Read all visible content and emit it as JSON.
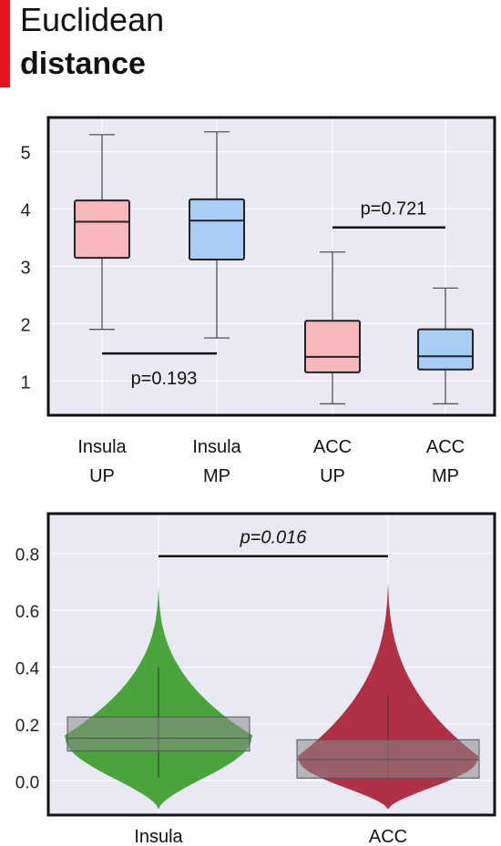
{
  "title": {
    "line1": "Euclidean",
    "line2": "distance"
  },
  "colors": {
    "panel_bg": "#e8e9f3",
    "grid": "#ffffff",
    "up_fill": "#f7b8bc",
    "mp_fill": "#a9cdf5",
    "insula_violin": "#49a43c",
    "acc_violin": "#b03046",
    "overlay_box": "#8a8a8a"
  },
  "chart_data": [
    {
      "type": "box",
      "ylim": [
        0.4,
        5.6
      ],
      "yticks": [
        "1",
        "2",
        "3",
        "4",
        "5"
      ],
      "ytick_values": [
        1,
        2,
        3,
        4,
        5
      ],
      "categories": [
        {
          "line1": "Insula",
          "line2": "UP",
          "group": "UP",
          "whisker_low": 1.9,
          "q1": 3.15,
          "median": 3.78,
          "q3": 4.15,
          "whisker_high": 5.3
        },
        {
          "line1": "Insula",
          "line2": "MP",
          "group": "MP",
          "whisker_low": 1.75,
          "q1": 3.12,
          "median": 3.8,
          "q3": 4.17,
          "whisker_high": 5.35
        },
        {
          "line1": "ACC",
          "line2": "UP",
          "group": "UP",
          "whisker_low": 0.6,
          "q1": 1.15,
          "median": 1.42,
          "q3": 2.05,
          "whisker_high": 3.25
        },
        {
          "line1": "ACC",
          "line2": "MP",
          "group": "MP",
          "whisker_low": 0.6,
          "q1": 1.2,
          "median": 1.43,
          "q3": 1.9,
          "whisker_high": 2.62
        }
      ],
      "annotations": [
        {
          "text": "p=0.193",
          "from": 0,
          "to": 1,
          "y": 1.48,
          "label_pos": "below"
        },
        {
          "text": "p=0.721",
          "from": 2,
          "to": 3,
          "y": 3.68,
          "label_pos": "above"
        }
      ]
    },
    {
      "type": "violin",
      "ylim": [
        -0.12,
        0.94
      ],
      "yticks": [
        "0.0",
        "0.2",
        "0.4",
        "0.6",
        "0.8"
      ],
      "ytick_values": [
        0.0,
        0.2,
        0.4,
        0.6,
        0.8
      ],
      "categories": [
        {
          "label": "Insula",
          "min": -0.1,
          "q1": 0.105,
          "median": 0.15,
          "q3": 0.225,
          "max": 0.68,
          "whisker_low": 0.01,
          "whisker_high": 0.4
        },
        {
          "label": "ACC",
          "min": -0.1,
          "q1": 0.01,
          "median": 0.075,
          "q3": 0.145,
          "max": 0.7,
          "whisker_low": 0.01,
          "whisker_high": 0.3
        }
      ],
      "annotations": [
        {
          "text": "p=0.016",
          "from": 0,
          "to": 1,
          "y": 0.8,
          "italic": true
        }
      ]
    }
  ]
}
